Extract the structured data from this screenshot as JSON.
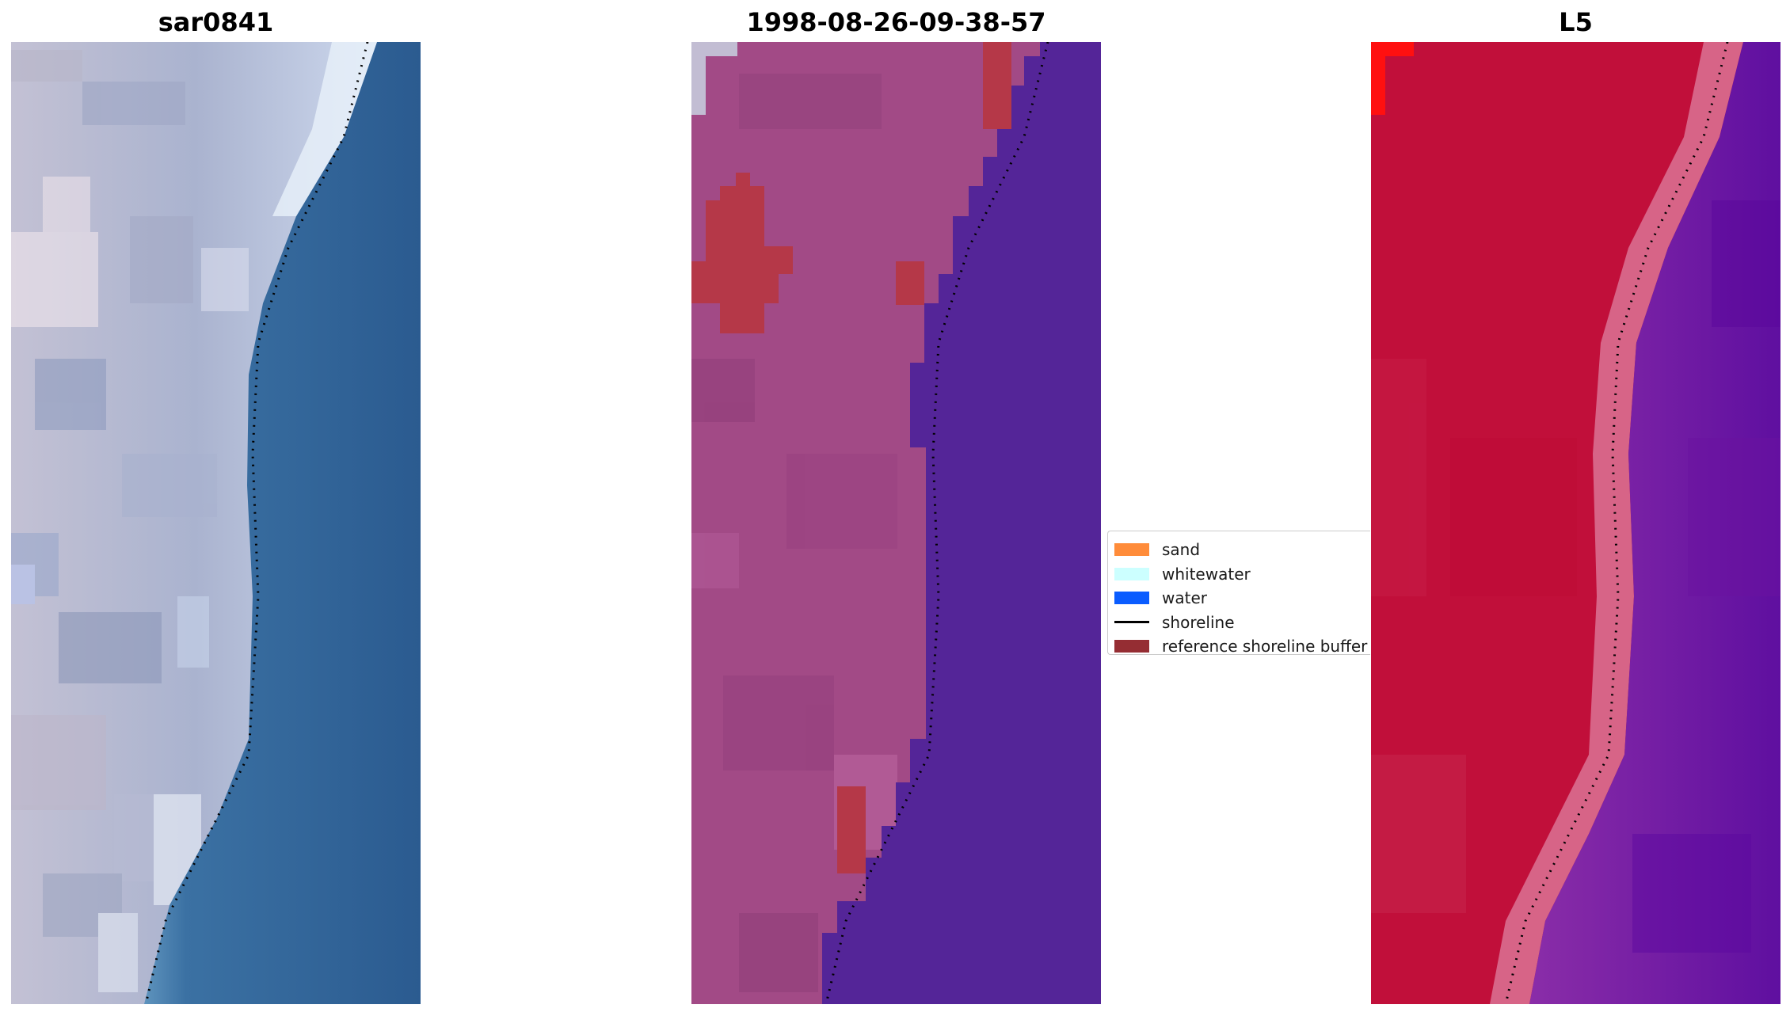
{
  "panels": [
    {
      "title": "sar0841"
    },
    {
      "title": "1998-08-26-09-38-57"
    },
    {
      "title": "L5"
    }
  ],
  "legend": {
    "items": [
      {
        "label": "sand",
        "color": "#ff8c3a",
        "kind": "patch"
      },
      {
        "label": "whitewater",
        "color": "#ccffff",
        "kind": "patch"
      },
      {
        "label": "water",
        "color": "#0a5cff",
        "kind": "patch"
      },
      {
        "label": "shoreline",
        "color": "#000000",
        "kind": "line"
      },
      {
        "label": "reference shoreline buffer",
        "color": "#952d33",
        "kind": "patch"
      }
    ]
  },
  "colors": {
    "rgb_water": "#2f6598",
    "rgb_land": "#b4bfd6",
    "classified_land": "#a24a86",
    "classified_water": "#542598",
    "classified_buffer": "#b53848",
    "index_land": "#c10f3a",
    "index_water": "#6f1a9f"
  }
}
